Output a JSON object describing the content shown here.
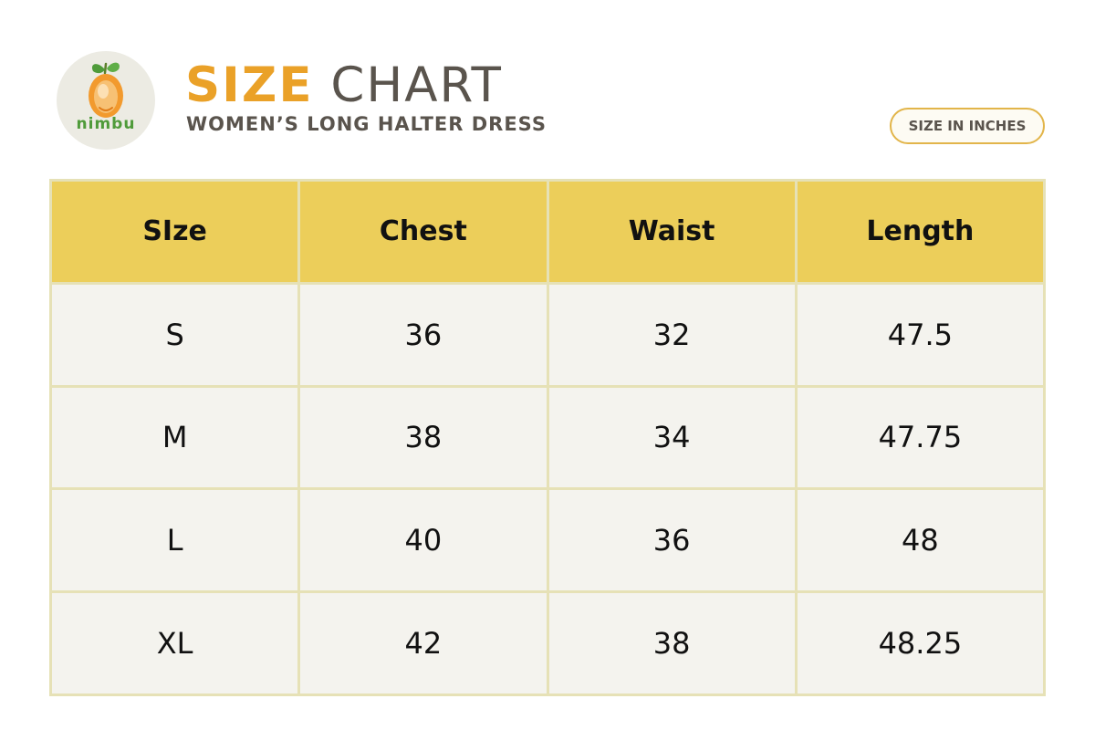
{
  "logo": {
    "brand": "nimbu",
    "icon": "lemon-logo-icon",
    "colors": {
      "circle": "#ecebe3",
      "fruit": "#f29a2e",
      "leaf": "#4f9b3a"
    }
  },
  "header": {
    "title_highlight": "SIZE",
    "title_rest": "CHART",
    "subtitle": "WOMEN’S LONG HALTER DRESS",
    "unit_badge": "SIZE IN INCHES"
  },
  "table": {
    "columns": [
      "SIze",
      "Chest",
      "Waist",
      "Length"
    ],
    "rows": [
      [
        "S",
        "36",
        "32",
        "47.5"
      ],
      [
        "M",
        "38",
        "34",
        "47.75"
      ],
      [
        "L",
        "40",
        "36",
        "48"
      ],
      [
        "XL",
        "42",
        "38",
        "48.25"
      ]
    ]
  },
  "colors": {
    "accent": "#eaa128",
    "title_gray": "#5a544d",
    "header_fill": "#ecce5a",
    "cell_fill": "#f4f3ee",
    "grid_line": "#e6e1b6",
    "badge_border": "#e2b54a"
  }
}
